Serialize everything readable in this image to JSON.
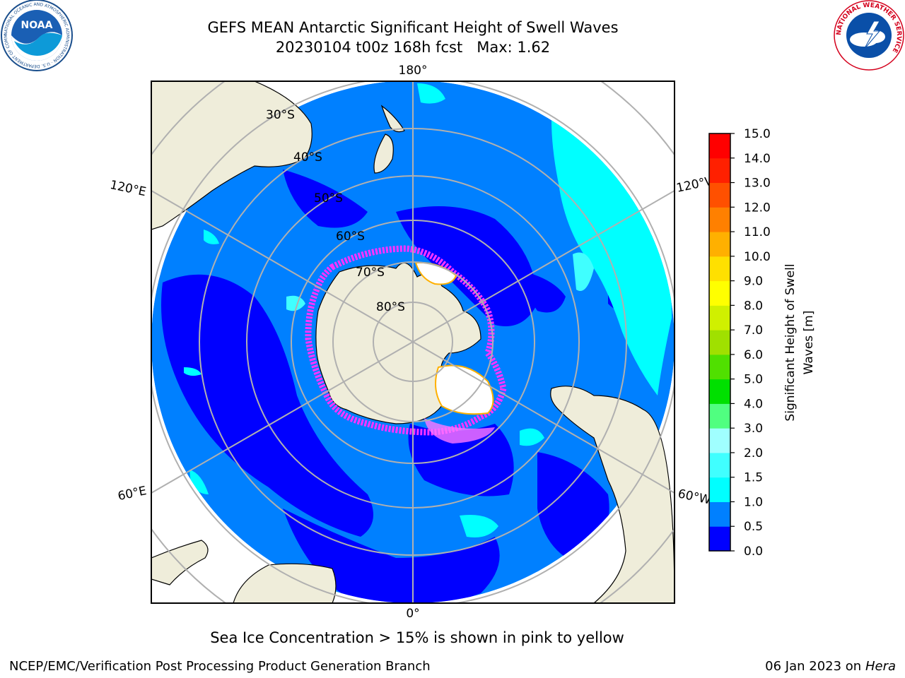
{
  "header": {
    "title_line1": "GEFS MEAN Antarctic Significant Height of Swell Waves",
    "title_line2": "20230104 t00z 168h fcst   Max: 1.62"
  },
  "logos": {
    "noaa_text": "NOAA",
    "noaa_ring": "NATIONAL OCEANIC AND ATMOSPHERIC ADMINISTRATION · U.S. DEPARTMENT OF COMMERCE",
    "nws_ring": "NATIONAL WEATHER SERVICE"
  },
  "map": {
    "projection": "south-polar-stereographic",
    "longitude_labels": {
      "top": "180°",
      "bottom": "0°",
      "left_upper": "120°E",
      "left_lower": "60°E",
      "right_upper": "120°W",
      "right_lower": "60°W"
    },
    "latitude_labels": [
      "30°S",
      "40°S",
      "50°S",
      "60°S",
      "70°S",
      "80°S"
    ],
    "colors": {
      "land": "#efedda",
      "ice_edge": "#ff33ff",
      "ice_interior": "#ffffff",
      "graticule": "#b0b0b0",
      "coast": "#000000"
    }
  },
  "colorbar": {
    "label_line1": "Significant Height of Swell",
    "label_line2": "Waves [m]",
    "ticks": [
      "0.0",
      "0.5",
      "1.0",
      "1.5",
      "2.0",
      "3.0",
      "4.0",
      "5.0",
      "6.0",
      "7.0",
      "8.0",
      "9.0",
      "10.0",
      "11.0",
      "12.0",
      "13.0",
      "14.0",
      "15.0"
    ],
    "colors": [
      "#0000ff",
      "#0080ff",
      "#00ffff",
      "#40ffff",
      "#a0ffff",
      "#50ff80",
      "#00e000",
      "#50e000",
      "#a0e000",
      "#d0f000",
      "#ffff00",
      "#ffe000",
      "#ffb000",
      "#ff8000",
      "#ff5000",
      "#ff2000",
      "#ff0000"
    ]
  },
  "footer": {
    "note": "Sea Ice Concentration > 15% is shown in pink to yellow",
    "credit": "NCEP/EMC/Verification Post Processing Product Generation Branch",
    "date": "06 Jan 2023 on",
    "host": "Hera"
  }
}
